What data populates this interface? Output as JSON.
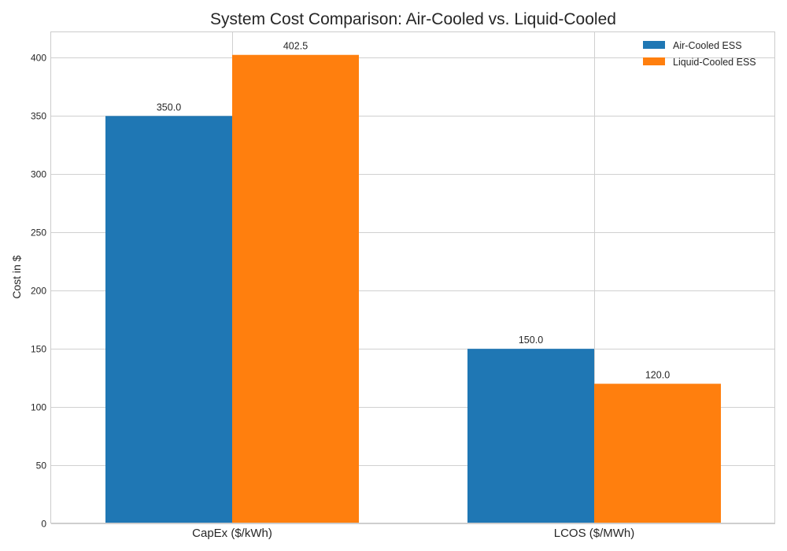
{
  "chart_data": {
    "type": "bar",
    "title": "System Cost Comparison: Air-Cooled vs. Liquid-Cooled",
    "xlabel": "",
    "ylabel": "Cost in $",
    "categories": [
      "CapEx ($/kWh)",
      "LCOS ($/MWh)"
    ],
    "series": [
      {
        "name": "Air-Cooled ESS",
        "values": [
          350.0,
          150.0
        ],
        "color": "#1f77b4"
      },
      {
        "name": "Liquid-Cooled ESS",
        "values": [
          402.5,
          120.0
        ],
        "color": "#ff7f0e"
      }
    ],
    "data_labels": [
      [
        "350.0",
        "150.0"
      ],
      [
        "402.5",
        "120.0"
      ]
    ],
    "ylim": [
      0,
      422.6
    ],
    "yticks": [
      0,
      50,
      100,
      150,
      200,
      250,
      300,
      350,
      400
    ],
    "grid": true,
    "legend_position": "top-right"
  }
}
